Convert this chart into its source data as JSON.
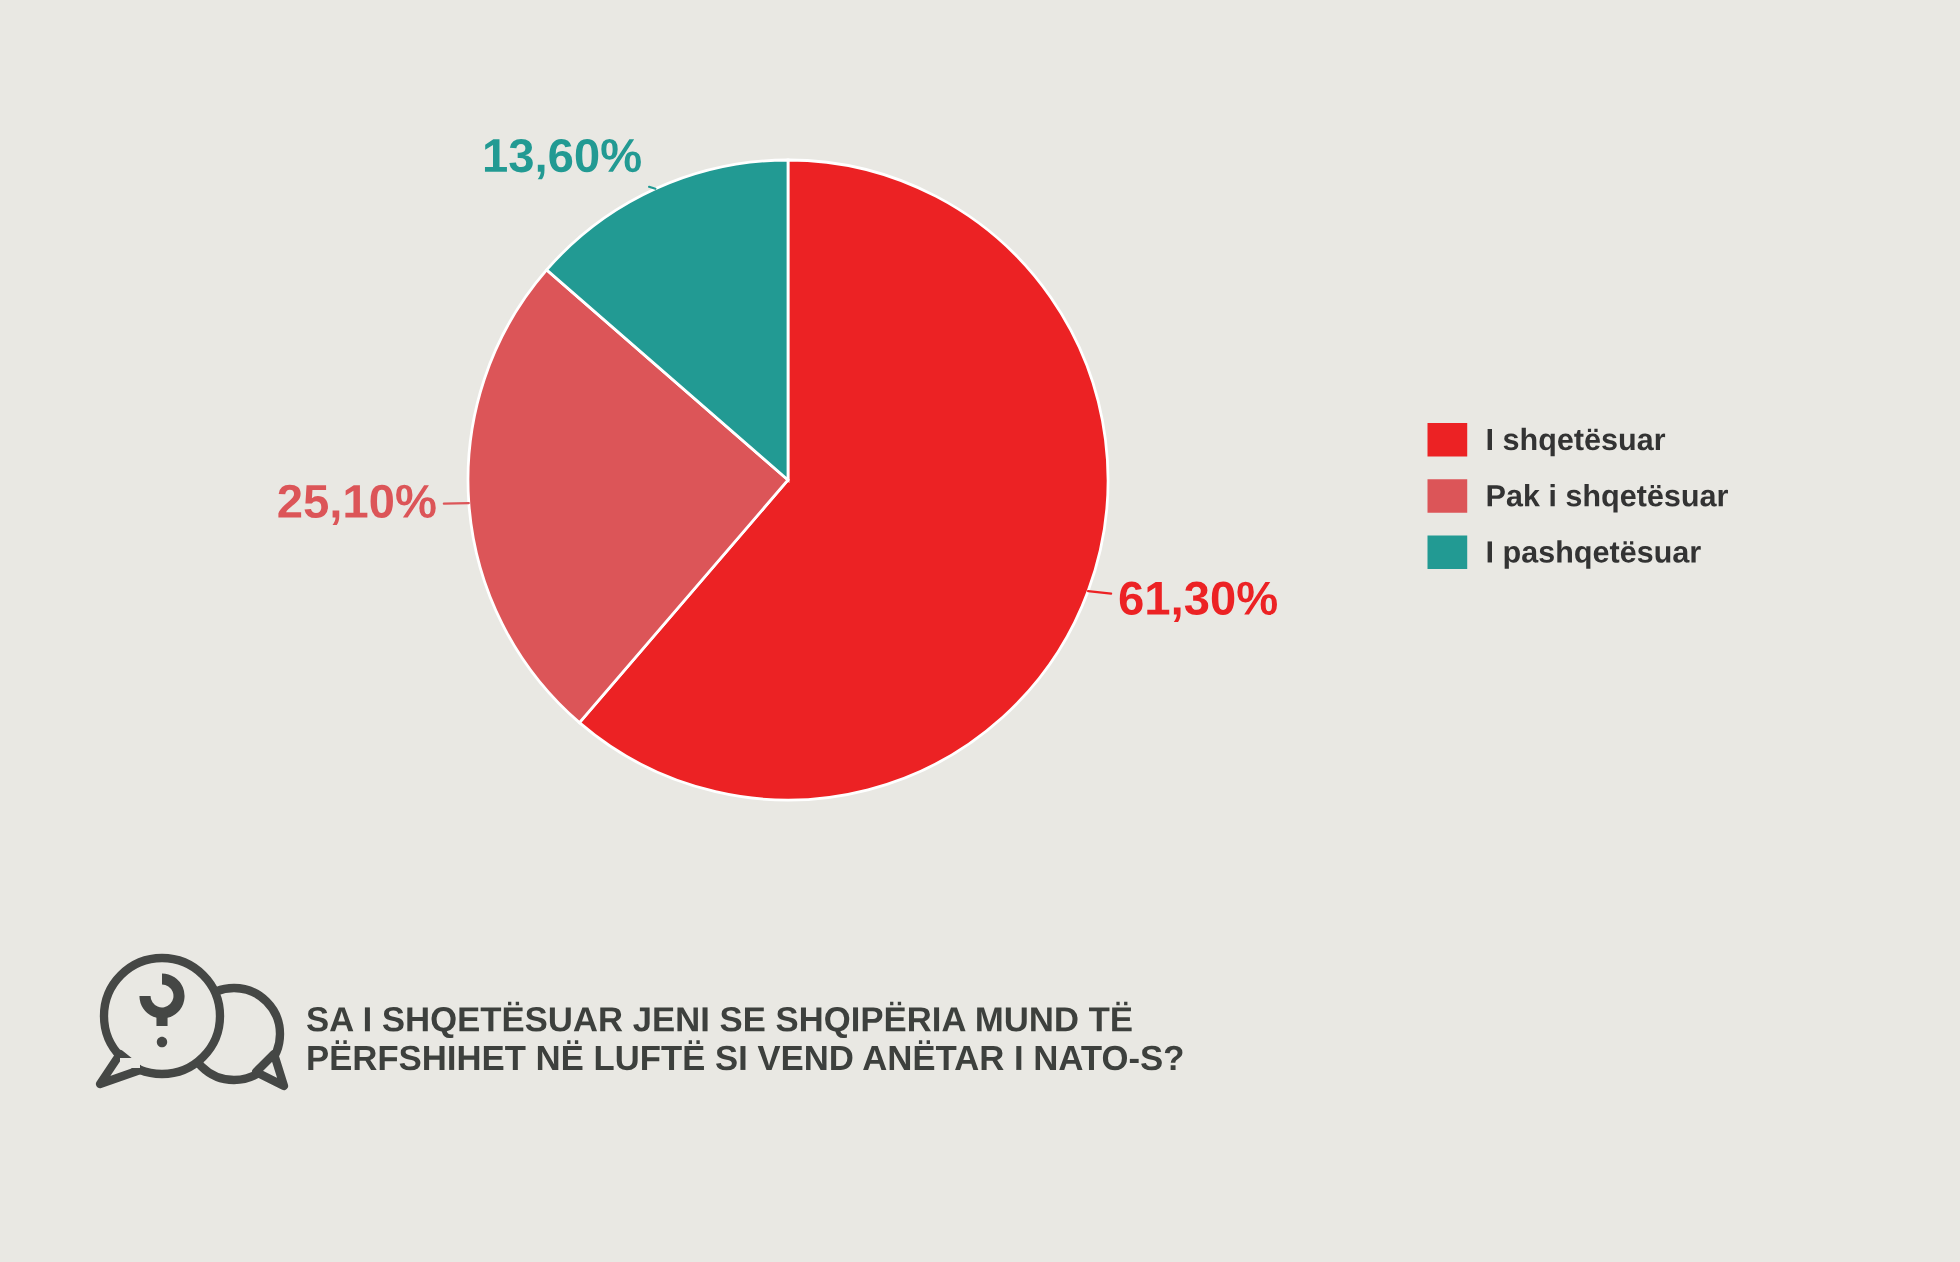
{
  "chart_data": {
    "type": "pie",
    "title": "SA I SHQETËSUAR JENI SE SHQIPËRIA MUND TË PËRFSHIHET NË LUFTË SI VEND ANËTAR I NATO-S?",
    "categories": [
      "I shqetësuar",
      "Pak i shqetësuar",
      "I pashqetësuar"
    ],
    "values": [
      61.3,
      25.1,
      13.6
    ],
    "colors": [
      "#ec2224",
      "#dc5558",
      "#229a93"
    ],
    "value_labels": [
      "61,30%",
      "25,10%",
      "13,60%"
    ],
    "legend": "right"
  }
}
